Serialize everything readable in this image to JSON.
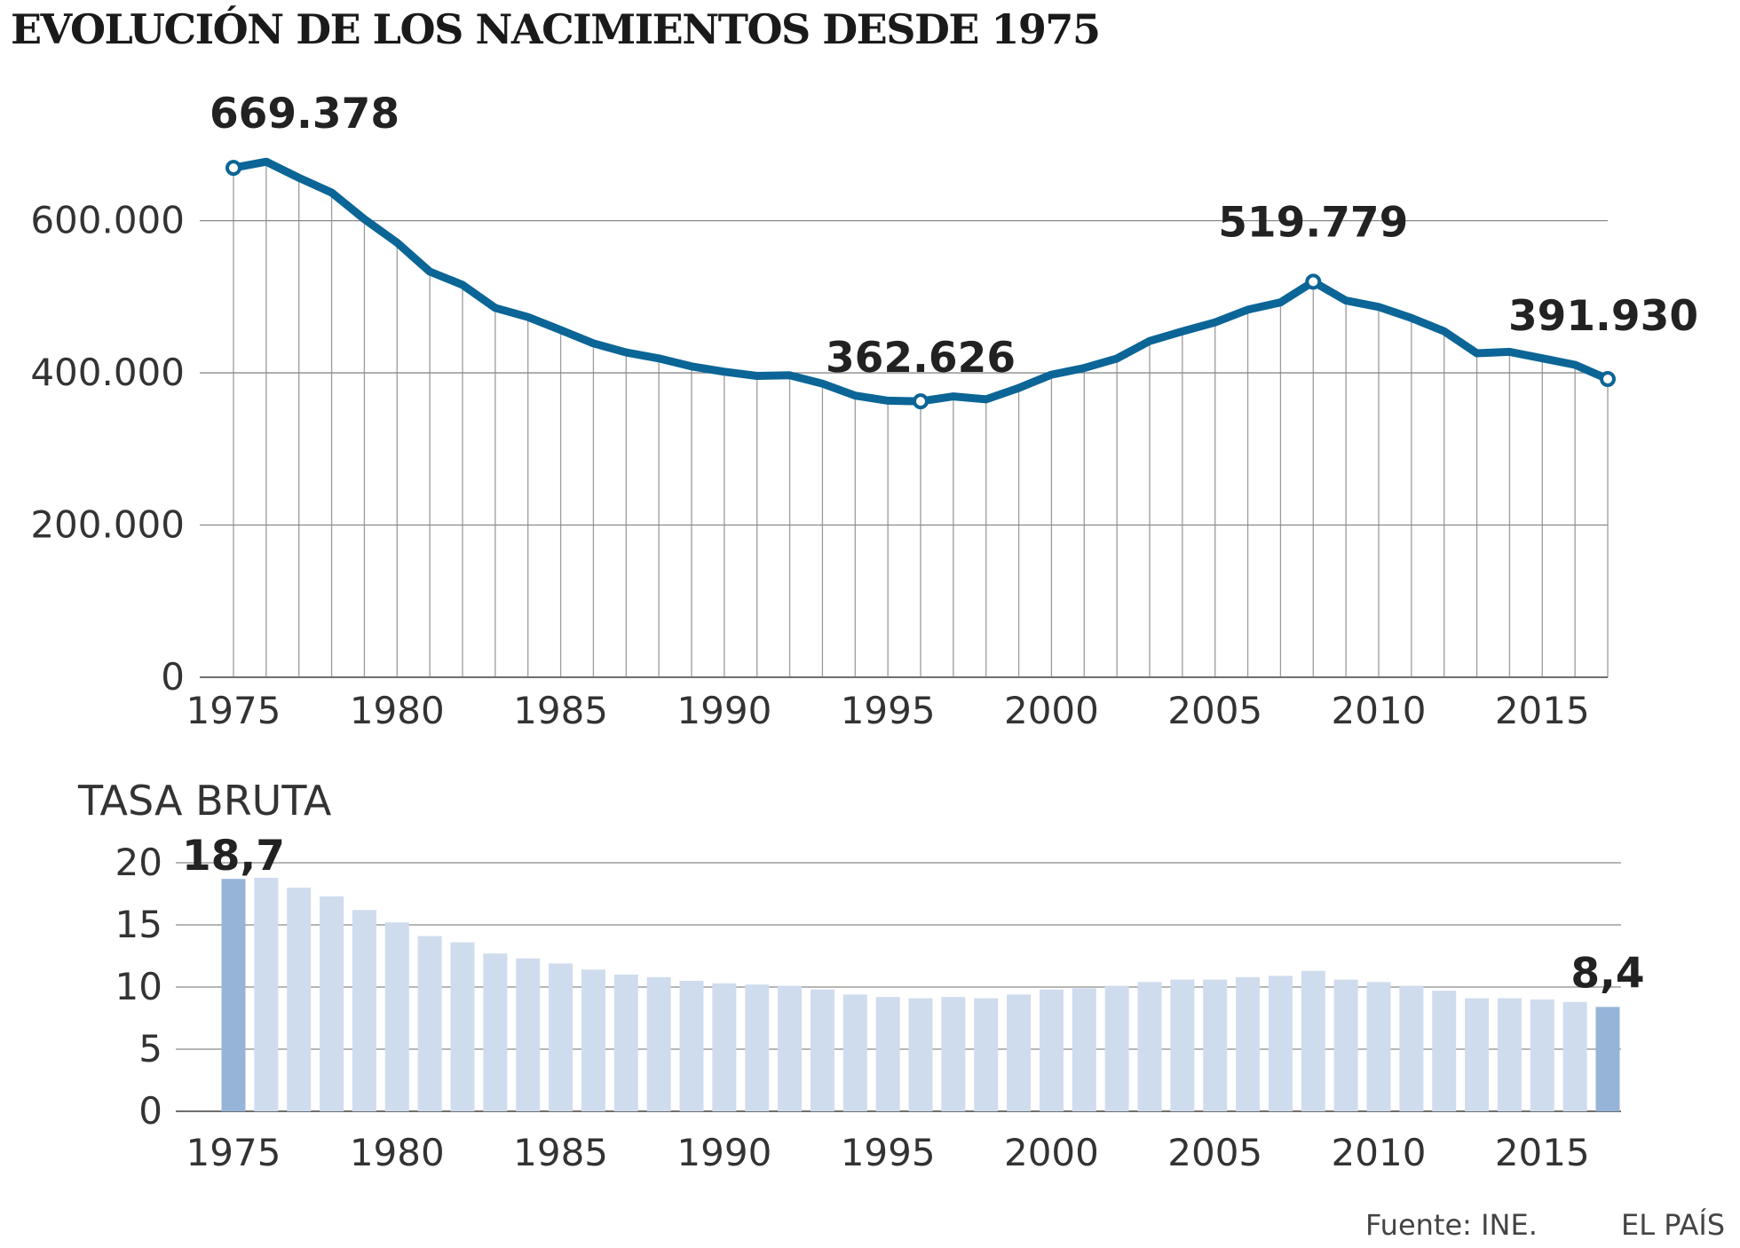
{
  "title": "EVOLUCIÓN DE LOS NACIMIENTOS DESDE 1975",
  "colors": {
    "line": "#0b6596",
    "bar_light": "#cfdcee",
    "bar_highlight": "#96b4d8",
    "grid": "#8a8a8a",
    "text": "#222222"
  },
  "chart_data": [
    {
      "type": "line",
      "title": "EVOLUCIÓN DE LOS NACIMIENTOS DESDE 1975",
      "x": [
        1975,
        1976,
        1977,
        1978,
        1979,
        1980,
        1981,
        1982,
        1983,
        1984,
        1985,
        1986,
        1987,
        1988,
        1989,
        1990,
        1991,
        1992,
        1993,
        1994,
        1995,
        1996,
        1997,
        1998,
        1999,
        2000,
        2001,
        2002,
        2003,
        2004,
        2005,
        2006,
        2007,
        2008,
        2009,
        2010,
        2011,
        2012,
        2013,
        2014,
        2015,
        2016,
        2017
      ],
      "series": [
        {
          "name": "Nacimientos",
          "values": [
            669378,
            677456,
            656357,
            636892,
            601992,
            571018,
            533008,
            515706,
            485352,
            473281,
            456298,
            438750,
            426782,
            418919,
            408434,
            401425,
            395989,
            396747,
            385786,
            370148,
            363469,
            362626,
            369035,
            365193,
            380130,
            397632,
            406380,
            418846,
            441881,
            454591,
            466371,
            482957,
            492527,
            519779,
            494997,
            486575,
            471999,
            454648,
            425715,
            427595,
            419109,
            410583,
            391930
          ]
        }
      ],
      "yticks": [
        0,
        200000,
        400000,
        600000
      ],
      "ytick_labels": [
        "0",
        "200.000",
        "400.000",
        "600.000"
      ],
      "xticks": [
        1975,
        1980,
        1985,
        1990,
        1995,
        2000,
        2005,
        2010,
        2015
      ],
      "xtick_labels": [
        "1975",
        "1980",
        "1985",
        "1990",
        "1995",
        "2000",
        "2005",
        "2010",
        "2015"
      ],
      "ylim": [
        0,
        680000
      ],
      "grid": true,
      "annotations": [
        {
          "year": 1975,
          "label": "669.378"
        },
        {
          "year": 1996,
          "label": "362.626"
        },
        {
          "year": 2008,
          "label": "519.779"
        },
        {
          "year": 2017,
          "label": "391.930"
        }
      ]
    },
    {
      "type": "bar",
      "title": "TASA BRUTA",
      "categories": [
        1975,
        1976,
        1977,
        1978,
        1979,
        1980,
        1981,
        1982,
        1983,
        1984,
        1985,
        1986,
        1987,
        1988,
        1989,
        1990,
        1991,
        1992,
        1993,
        1994,
        1995,
        1996,
        1997,
        1998,
        1999,
        2000,
        2001,
        2002,
        2003,
        2004,
        2005,
        2006,
        2007,
        2008,
        2009,
        2010,
        2011,
        2012,
        2013,
        2014,
        2015,
        2016,
        2017
      ],
      "values": [
        18.7,
        18.8,
        18.0,
        17.3,
        16.2,
        15.2,
        14.1,
        13.6,
        12.7,
        12.3,
        11.9,
        11.4,
        11.0,
        10.8,
        10.5,
        10.3,
        10.2,
        10.1,
        9.8,
        9.4,
        9.2,
        9.1,
        9.2,
        9.1,
        9.4,
        9.8,
        9.9,
        10.1,
        10.4,
        10.6,
        10.6,
        10.8,
        10.9,
        11.3,
        10.6,
        10.4,
        10.1,
        9.7,
        9.1,
        9.1,
        9.0,
        8.8,
        8.4
      ],
      "highlight": [
        1975,
        2017
      ],
      "yticks": [
        0,
        5,
        10,
        15,
        20
      ],
      "ytick_labels": [
        "0",
        "5",
        "10",
        "15",
        "20"
      ],
      "xticks": [
        1975,
        1980,
        1985,
        1990,
        1995,
        2000,
        2005,
        2010,
        2015
      ],
      "xtick_labels": [
        "1975",
        "1980",
        "1985",
        "1990",
        "1995",
        "2000",
        "2005",
        "2010",
        "2015"
      ],
      "ylim": [
        0,
        20
      ],
      "grid": true,
      "annotations": [
        {
          "year": 1975,
          "label": "18,7"
        },
        {
          "year": 2017,
          "label": "8,4"
        }
      ]
    }
  ],
  "footer": {
    "source": "Fuente: INE.",
    "brand": "EL PAÍS"
  }
}
